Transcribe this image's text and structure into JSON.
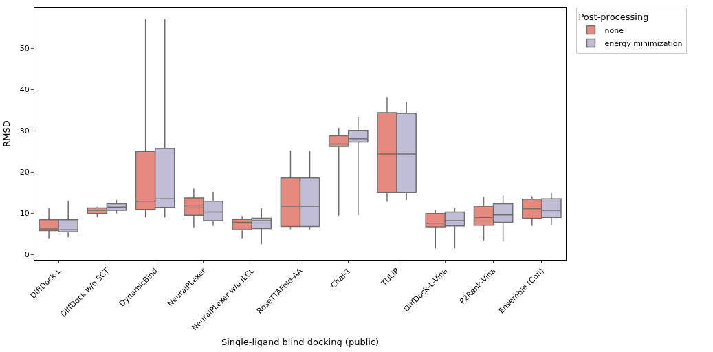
{
  "chart_data": {
    "type": "box",
    "xlabel": "Single-ligand blind docking (public)",
    "ylabel": "RMSD",
    "legend_title": "Post-processing",
    "legend": "top right",
    "categories": [
      "DiffDock-L",
      "DiffDock w/o SCT",
      "DynamicBind",
      "NeuralPLexer",
      "NeuralPLexer w/o ILCL",
      "RoseTTAFold-AA",
      "Chai-1",
      "TULIP",
      "DiffDock-L-Vina",
      "P2Rank-Vina",
      "Ensemble (Con)"
    ],
    "ylim": [
      -1.3,
      59.9
    ],
    "yticks": [
      0,
      10,
      20,
      30,
      40,
      50
    ],
    "grid": false,
    "series": [
      {
        "name": "none",
        "color": "#e8897f",
        "boxes": [
          {
            "low": 3.9,
            "q1": 5.8,
            "median": 6.2,
            "q3": 8.4,
            "high": 11.2
          },
          {
            "low": 9.1,
            "q1": 9.9,
            "median": 10.7,
            "q3": 11.3,
            "high": 11.6
          },
          {
            "low": 9.0,
            "q1": 10.9,
            "median": 12.9,
            "q3": 25.0,
            "high": 57.1
          },
          {
            "low": 6.5,
            "q1": 9.5,
            "median": 11.8,
            "q3": 13.7,
            "high": 16.0
          },
          {
            "low": 3.9,
            "q1": 6.0,
            "median": 7.8,
            "q3": 8.5,
            "high": 9.3
          },
          {
            "low": 6.1,
            "q1": 6.8,
            "median": 11.7,
            "q3": 18.6,
            "high": 25.2
          },
          {
            "low": 9.4,
            "q1": 26.2,
            "median": 26.8,
            "q3": 28.8,
            "high": 30.7
          },
          {
            "low": 12.8,
            "q1": 15.0,
            "median": 24.4,
            "q3": 34.4,
            "high": 38.2
          },
          {
            "low": 1.5,
            "q1": 6.7,
            "median": 7.6,
            "q3": 9.9,
            "high": 10.7
          },
          {
            "low": 3.4,
            "q1": 7.1,
            "median": 9.0,
            "q3": 11.7,
            "high": 14.0
          },
          {
            "low": 6.9,
            "q1": 8.8,
            "median": 11.1,
            "q3": 13.4,
            "high": 14.1
          }
        ]
      },
      {
        "name": "energy minimization",
        "color": "#c1bdd7",
        "boxes": [
          {
            "low": 4.2,
            "q1": 5.5,
            "median": 6.0,
            "q3": 8.4,
            "high": 13.0
          },
          {
            "low": 9.9,
            "q1": 10.7,
            "median": 11.5,
            "q3": 12.3,
            "high": 13.2
          },
          {
            "low": 9.0,
            "q1": 11.4,
            "median": 13.5,
            "q3": 25.7,
            "high": 57.1
          },
          {
            "low": 6.9,
            "q1": 8.2,
            "median": 10.3,
            "q3": 12.9,
            "high": 15.2
          },
          {
            "low": 2.5,
            "q1": 6.3,
            "median": 8.2,
            "q3": 8.8,
            "high": 11.2
          },
          {
            "low": 6.1,
            "q1": 6.8,
            "median": 11.7,
            "q3": 18.6,
            "high": 25.1
          },
          {
            "low": 9.5,
            "q1": 27.3,
            "median": 28.1,
            "q3": 30.1,
            "high": 33.4
          },
          {
            "low": 13.2,
            "q1": 15.0,
            "median": 24.4,
            "q3": 34.2,
            "high": 37.0
          },
          {
            "low": 1.5,
            "q1": 6.9,
            "median": 8.2,
            "q3": 10.3,
            "high": 11.3
          },
          {
            "low": 3.1,
            "q1": 7.8,
            "median": 9.6,
            "q3": 12.3,
            "high": 14.3
          },
          {
            "low": 7.1,
            "q1": 9.0,
            "median": 10.7,
            "q3": 13.5,
            "high": 14.9
          }
        ]
      }
    ]
  }
}
